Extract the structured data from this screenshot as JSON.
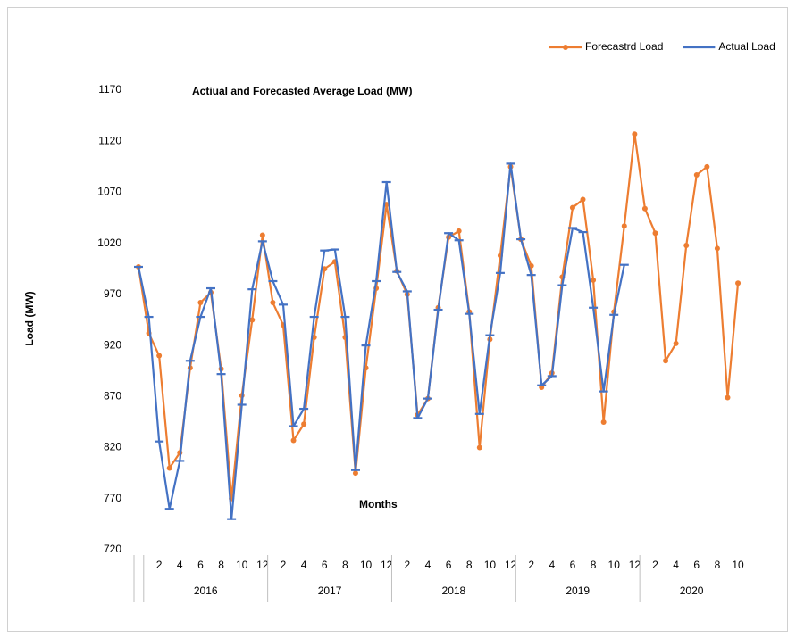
{
  "chart_data": {
    "type": "line",
    "title": "Actiual  and Forecasted Average Load  (MW)",
    "x_annotation": "Months",
    "y_label": "Load (MW)",
    "categories": [
      null,
      null,
      "2",
      null,
      "4",
      null,
      "6",
      null,
      "8",
      null,
      "10",
      null,
      "12",
      null,
      "2",
      null,
      "4",
      null,
      "6",
      null,
      "8",
      null,
      "10",
      null,
      "12",
      null,
      "2",
      null,
      "4",
      null,
      "6",
      null,
      "8",
      null,
      "10",
      null,
      "12",
      null,
      "2",
      null,
      "4",
      null,
      "6",
      null,
      "8",
      null,
      "10",
      null,
      "12",
      null,
      "2",
      null,
      "4",
      null,
      "6",
      null,
      "8",
      null,
      "10"
    ],
    "years": [
      "2016",
      "2017",
      "2018",
      "2019",
      "2020"
    ],
    "series": [
      {
        "name": "Forecastrd Load",
        "color": "#ED7D31",
        "marker": "circle",
        "values": [
          997,
          932,
          910,
          800,
          815,
          898,
          962,
          972,
          897,
          770,
          871,
          945,
          1028,
          962,
          940,
          827,
          843,
          928,
          995,
          1002,
          928,
          795,
          898,
          976,
          1058,
          993,
          970,
          852,
          868,
          957,
          1026,
          1032,
          953,
          820,
          926,
          1008,
          1095,
          1024,
          998,
          879,
          893,
          987,
          1055,
          1063,
          984,
          845,
          953,
          1037,
          1127,
          1054,
          1030,
          905,
          922,
          1018,
          1087,
          1095,
          1015,
          869,
          981
        ]
      },
      {
        "name": "Actual Load",
        "color": "#4472C4",
        "marker": "dash",
        "values": [
          997,
          948,
          826,
          760,
          807,
          905,
          948,
          976,
          892,
          750,
          862,
          975,
          1022,
          983,
          960,
          841,
          858,
          948,
          1013,
          1014,
          948,
          798,
          920,
          983,
          1080,
          992,
          973,
          849,
          868,
          955,
          1030,
          1023,
          951,
          853,
          930,
          991,
          1098,
          1024,
          989,
          881,
          890,
          979,
          1035,
          1031,
          957,
          875,
          950,
          999,
          null,
          null,
          null,
          null,
          null,
          null,
          null,
          null,
          null,
          null,
          null
        ]
      }
    ],
    "ylim": [
      720,
      1170
    ],
    "yticks": [
      720,
      770,
      820,
      870,
      920,
      970,
      1020,
      1070,
      1120,
      1170
    ],
    "grid": false,
    "legend": "top-right"
  }
}
